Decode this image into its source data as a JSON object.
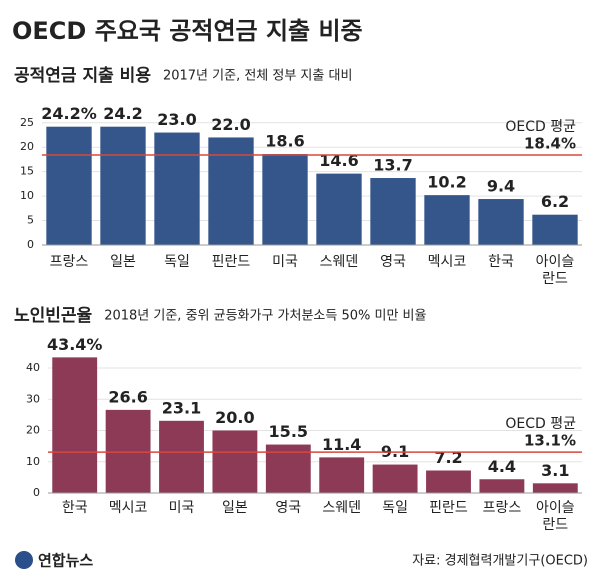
{
  "title": "OECD 주요국 공적연금 지출 비중",
  "chart_data": [
    {
      "type": "bar",
      "title": "공적연금 지출 비용",
      "subtitle": "2017년 기준, 전체 정부 지출 대비",
      "categories": [
        "프랑스",
        "일본",
        "독일",
        "핀란드",
        "미국",
        "스웨덴",
        "영국",
        "멕시코",
        "한국",
        "아이슬란드"
      ],
      "values": [
        24.2,
        24.2,
        23,
        22,
        18.6,
        14.6,
        13.7,
        10.2,
        9.4,
        6.2
      ],
      "value_labels": [
        "24.2%",
        "24.2",
        "23.0",
        "22.0",
        "18.6",
        "14.6",
        "13.7",
        "10.2",
        "9.4",
        "6.2"
      ],
      "color": "#35568a",
      "ylim": [
        0,
        27
      ],
      "yticks": [
        0,
        5,
        10,
        15,
        20,
        25
      ],
      "grid": true,
      "reference": {
        "label": "OECD 평균",
        "value": 18.4,
        "value_label": "18.4%",
        "color": "#d7483b"
      }
    },
    {
      "type": "bar",
      "title": "노인빈곤율",
      "subtitle": "2018년 기준, 중위 균등화가구 가처분소득 50% 미만 비율",
      "categories": [
        "한국",
        "멕시코",
        "미국",
        "일본",
        "영국",
        "스웨덴",
        "독일",
        "핀란드",
        "프랑스",
        "아이슬란드"
      ],
      "values": [
        43.4,
        26.6,
        23.1,
        20,
        15.5,
        11.4,
        9.1,
        7.2,
        4.4,
        3.1
      ],
      "value_labels": [
        "43.4%",
        "26.6",
        "23.1",
        "20.0",
        "15.5",
        "11.4",
        "9.1",
        "7.2",
        "4.4",
        "3.1"
      ],
      "color": "#8c3a55",
      "ylim": [
        0,
        48
      ],
      "yticks": [
        0,
        10,
        20,
        30,
        40
      ],
      "grid": true,
      "reference": {
        "label": "OECD 평균",
        "value": 13.1,
        "value_label": "13.1%",
        "color": "#d7483b"
      }
    }
  ],
  "credit": "연합뉴스",
  "source": "자료: 경제협력개발기구(OECD)"
}
